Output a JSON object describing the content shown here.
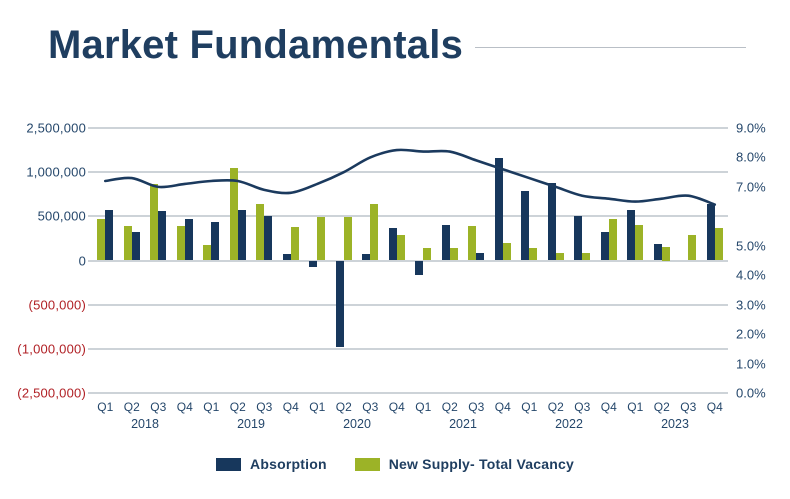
{
  "page": {
    "title": "Market Fundamentals"
  },
  "colors": {
    "navy": "#17375c",
    "green": "#9cb327",
    "line": "#1b3a5e",
    "negative_label_red": "#b01f24",
    "gridline": "#cdd3d8",
    "axis_text": "#25476b",
    "title_text": "#1f3e60"
  },
  "legend": [
    {
      "key": "absorption",
      "label": "Absorption",
      "color": "#17375c"
    },
    {
      "key": "new_supply",
      "label": "New Supply- Total Vacancy",
      "color": "#9cb327"
    }
  ],
  "axes": {
    "left_labels": [
      "2,500,000",
      "1,000,000",
      "500,000",
      "0",
      "(500,000)",
      "(1,000,000)",
      "(2,500,000)"
    ],
    "left_values": [
      2500000,
      1000000,
      500000,
      0,
      -500000,
      -1000000,
      -2500000
    ],
    "right_labels": [
      "9.0%",
      "8.0%",
      "7.0%",
      "",
      "5.0%",
      "4.0%",
      "3.0%",
      "2.0%",
      "1.0%",
      "0.0%"
    ],
    "right_range": [
      0,
      9
    ]
  },
  "chart_data": {
    "type": "bar",
    "title": "Market Fundamentals",
    "xlabel": "",
    "ylabel_left": "",
    "ylabel_right": "",
    "grid": true,
    "legend_position": "bottom",
    "quarters": [
      "Q1",
      "Q2",
      "Q3",
      "Q4",
      "Q1",
      "Q2",
      "Q3",
      "Q4",
      "Q1",
      "Q2",
      "Q3",
      "Q4",
      "Q1",
      "Q2",
      "Q3",
      "Q4",
      "Q1",
      "Q2",
      "Q3",
      "Q4",
      "Q1",
      "Q2",
      "Q3",
      "Q4"
    ],
    "years": [
      "2018",
      "2019",
      "2020",
      "2021",
      "2022",
      "2023"
    ],
    "left_axis_breakpoints": [
      2500000,
      1000000,
      500000,
      0,
      -500000,
      -1000000,
      -2500000
    ],
    "series": [
      {
        "name": "Absorption",
        "type": "bar",
        "axis": "left",
        "color": "#17375c",
        "values": [
          570000,
          320000,
          560000,
          470000,
          435000,
          575000,
          500000,
          70000,
          -75000,
          -980000,
          70000,
          365000,
          -165000,
          400000,
          85000,
          1480000,
          785000,
          875000,
          500000,
          320000,
          570000,
          185000,
          0,
          640000
        ]
      },
      {
        "name": "New Supply",
        "type": "bar",
        "axis": "left",
        "color": "#9cb327",
        "values": [
          470000,
          390000,
          865000,
          390000,
          175000,
          1140000,
          640000,
          380000,
          490000,
          495000,
          645000,
          290000,
          140000,
          140000,
          390000,
          200000,
          140000,
          85000,
          85000,
          470000,
          400000,
          150000,
          285000,
          365000
        ]
      },
      {
        "name": "Total Vacancy",
        "type": "line",
        "axis": "right",
        "color": "#1b3a5e",
        "values": [
          7.2,
          7.3,
          7.0,
          7.1,
          7.2,
          7.2,
          6.9,
          6.8,
          7.1,
          7.5,
          8.0,
          8.25,
          8.2,
          8.2,
          7.9,
          7.6,
          7.3,
          7.0,
          6.7,
          6.6,
          6.5,
          6.6,
          6.7,
          6.4
        ]
      }
    ],
    "bar_order_left_series": [
      "new_supply",
      "new_supply",
      "new_supply",
      "new_supply",
      "new_supply",
      "new_supply",
      "new_supply",
      "absorption",
      "absorption",
      "absorption",
      "absorption",
      "absorption",
      "absorption",
      "absorption",
      "new_supply",
      "absorption",
      "absorption",
      "absorption",
      "absorption",
      "absorption",
      "absorption",
      "absorption",
      "absorption",
      "absorption"
    ]
  }
}
